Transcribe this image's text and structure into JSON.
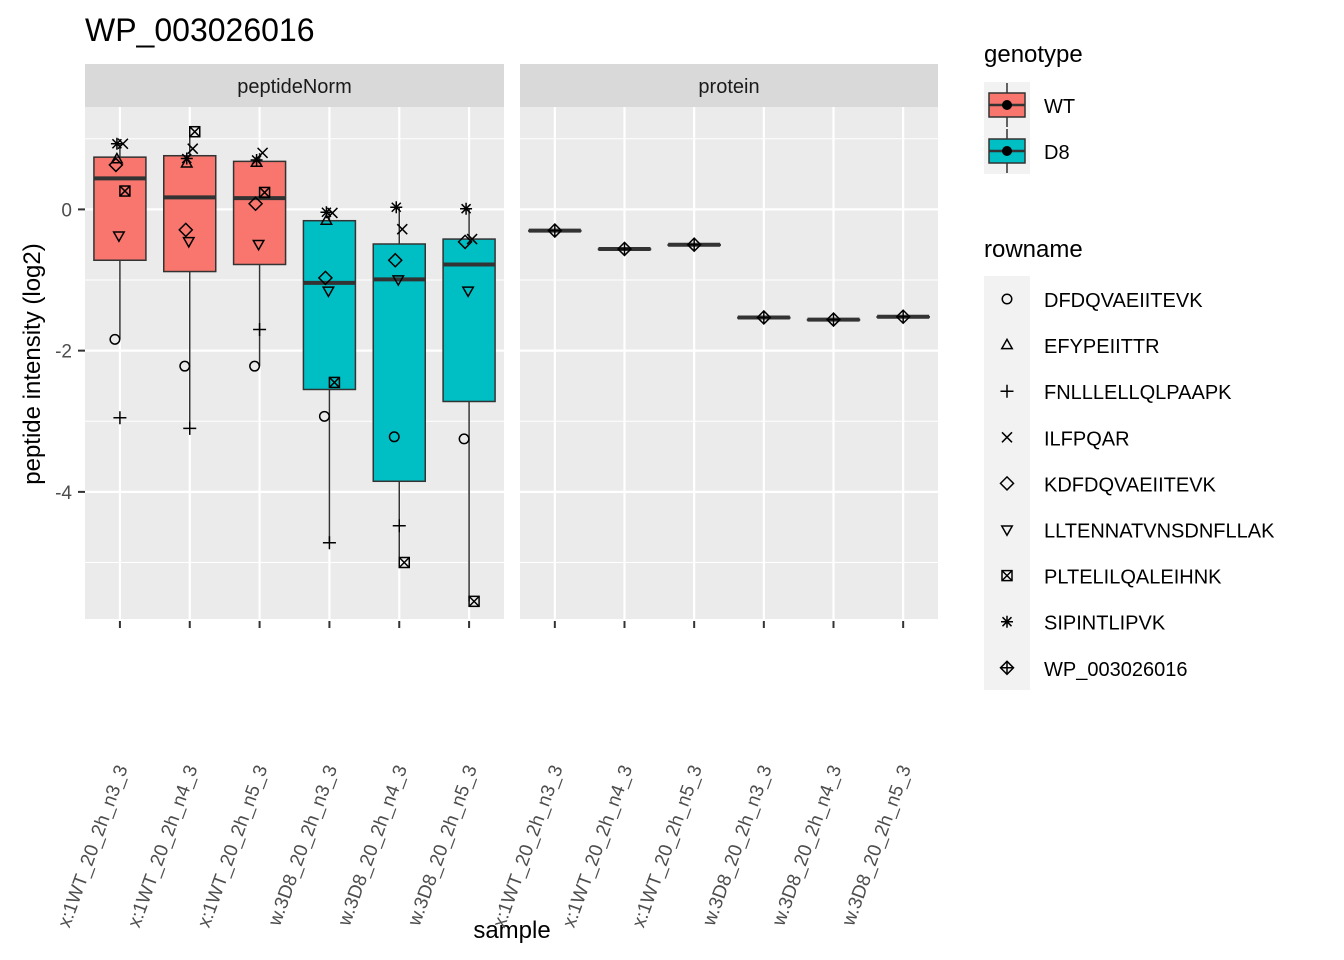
{
  "chart_data": {
    "type": "boxplot",
    "title": "WP_003026016",
    "xlabel": "sample",
    "ylabel": "peptide intensity (log2)",
    "ylim": [
      -5.8,
      1.45
    ],
    "yticks": [
      0,
      -2,
      -4
    ],
    "ytick_labels": [
      "0",
      "-2",
      "-4"
    ],
    "sample_labels": [
      "x:1WT_20_2h_n3_3",
      "x:1WT_20_2h_n4_3",
      "x:1WT_20_2h_n5_3",
      "w.3D8_20_2h_n3_3",
      "w.3D8_20_2h_n4_3",
      "w.3D8_20_2h_n5_3"
    ],
    "sample_genotype": [
      "WT",
      "WT",
      "WT",
      "D8",
      "D8",
      "D8"
    ],
    "grid": true,
    "legend_position": "right",
    "legends": {
      "genotype": {
        "title": "genotype",
        "entries": [
          {
            "label": "WT",
            "color": "#F8766D"
          },
          {
            "label": "D8",
            "color": "#00BFC4"
          }
        ]
      },
      "rowname": {
        "title": "rowname",
        "entries": [
          {
            "label": "DFDQVAEIITEVK",
            "shape": "circle"
          },
          {
            "label": "EFYPEIITTR",
            "shape": "triangle-up"
          },
          {
            "label": "FNLLLELLQLPAAPK",
            "shape": "plus"
          },
          {
            "label": "ILFPQAR",
            "shape": "cross"
          },
          {
            "label": "KDFDQVAEIITEVK",
            "shape": "diamond"
          },
          {
            "label": "LLTENNATVNSDNFLLAK",
            "shape": "triangle-down"
          },
          {
            "label": "PLTELILQALEIHNK",
            "shape": "square-cross"
          },
          {
            "label": "SIPINTLIPVK",
            "shape": "asterisk"
          },
          {
            "label": "WP_003026016",
            "shape": "diamond-plus"
          }
        ]
      }
    },
    "facets": [
      {
        "label": "peptideNorm",
        "boxes": [
          {
            "q1": -0.72,
            "median": 0.44,
            "q3": 0.74,
            "whisker_low": -1.84,
            "whisker_high": 0.93
          },
          {
            "q1": -0.88,
            "median": 0.17,
            "q3": 0.76,
            "whisker_low": -3.1,
            "whisker_high": 1.1
          },
          {
            "q1": -0.78,
            "median": 0.16,
            "q3": 0.68,
            "whisker_low": -2.22,
            "whisker_high": 0.8
          },
          {
            "q1": -2.55,
            "median": -1.04,
            "q3": -0.16,
            "whisker_low": -4.72,
            "whisker_high": -0.04
          },
          {
            "q1": -3.85,
            "median": -0.99,
            "q3": -0.49,
            "whisker_low": -5.0,
            "whisker_high": 0.03
          },
          {
            "q1": -2.72,
            "median": -0.78,
            "q3": -0.42,
            "whisker_low": -5.55,
            "whisker_high": 0.01
          }
        ],
        "points": [
          {
            "sample": 0,
            "rowname": "DFDQVAEIITEVK",
            "y": -1.84
          },
          {
            "sample": 0,
            "rowname": "FNLLLELLQLPAAPK",
            "y": -2.95
          },
          {
            "sample": 0,
            "rowname": "ILFPQAR",
            "y": 0.93
          },
          {
            "sample": 0,
            "rowname": "KDFDQVAEIITEVK",
            "y": 0.63
          },
          {
            "sample": 0,
            "rowname": "LLTENNATVNSDNFLLAK",
            "y": -0.37
          },
          {
            "sample": 0,
            "rowname": "PLTELILQALEIHNK",
            "y": 0.26
          },
          {
            "sample": 0,
            "rowname": "SIPINTLIPVK",
            "y": 0.93
          },
          {
            "sample": 0,
            "rowname": "EFYPEIITTR",
            "y": 0.71
          },
          {
            "sample": 1,
            "rowname": "DFDQVAEIITEVK",
            "y": -2.22
          },
          {
            "sample": 1,
            "rowname": "FNLLLELLQLPAAPK",
            "y": -3.1
          },
          {
            "sample": 1,
            "rowname": "ILFPQAR",
            "y": 0.86
          },
          {
            "sample": 1,
            "rowname": "KDFDQVAEIITEVK",
            "y": -0.29
          },
          {
            "sample": 1,
            "rowname": "LLTENNATVNSDNFLLAK",
            "y": -0.45
          },
          {
            "sample": 1,
            "rowname": "PLTELILQALEIHNK",
            "y": 1.1
          },
          {
            "sample": 1,
            "rowname": "SIPINTLIPVK",
            "y": 0.72
          },
          {
            "sample": 1,
            "rowname": "EFYPEIITTR",
            "y": 0.65
          },
          {
            "sample": 2,
            "rowname": "DFDQVAEIITEVK",
            "y": -2.22
          },
          {
            "sample": 2,
            "rowname": "FNLLLELLQLPAAPK",
            "y": -1.7
          },
          {
            "sample": 2,
            "rowname": "ILFPQAR",
            "y": 0.8
          },
          {
            "sample": 2,
            "rowname": "KDFDQVAEIITEVK",
            "y": 0.08
          },
          {
            "sample": 2,
            "rowname": "LLTENNATVNSDNFLLAK",
            "y": -0.49
          },
          {
            "sample": 2,
            "rowname": "PLTELILQALEIHNK",
            "y": 0.24
          },
          {
            "sample": 2,
            "rowname": "SIPINTLIPVK",
            "y": 0.7
          },
          {
            "sample": 2,
            "rowname": "EFYPEIITTR",
            "y": 0.66
          },
          {
            "sample": 3,
            "rowname": "DFDQVAEIITEVK",
            "y": -2.93
          },
          {
            "sample": 3,
            "rowname": "FNLLLELLQLPAAPK",
            "y": -4.72
          },
          {
            "sample": 3,
            "rowname": "ILFPQAR",
            "y": -0.05
          },
          {
            "sample": 3,
            "rowname": "KDFDQVAEIITEVK",
            "y": -0.97
          },
          {
            "sample": 3,
            "rowname": "LLTENNATVNSDNFLLAK",
            "y": -1.15
          },
          {
            "sample": 3,
            "rowname": "PLTELILQALEIHNK",
            "y": -2.45
          },
          {
            "sample": 3,
            "rowname": "SIPINTLIPVK",
            "y": -0.04
          },
          {
            "sample": 3,
            "rowname": "EFYPEIITTR",
            "y": -0.16
          },
          {
            "sample": 4,
            "rowname": "DFDQVAEIITEVK",
            "y": -3.22
          },
          {
            "sample": 4,
            "rowname": "FNLLLELLQLPAAPK",
            "y": -4.48
          },
          {
            "sample": 4,
            "rowname": "ILFPQAR",
            "y": -0.28
          },
          {
            "sample": 4,
            "rowname": "KDFDQVAEIITEVK",
            "y": -0.72
          },
          {
            "sample": 4,
            "rowname": "LLTENNATVNSDNFLLAK",
            "y": -0.99
          },
          {
            "sample": 4,
            "rowname": "PLTELILQALEIHNK",
            "y": -5.0
          },
          {
            "sample": 4,
            "rowname": "SIPINTLIPVK",
            "y": 0.03
          },
          {
            "sample": 5,
            "rowname": "DFDQVAEIITEVK",
            "y": -3.25
          },
          {
            "sample": 5,
            "rowname": "ILFPQAR",
            "y": -0.42
          },
          {
            "sample": 5,
            "rowname": "KDFDQVAEIITEVK",
            "y": -0.46
          },
          {
            "sample": 5,
            "rowname": "LLTENNATVNSDNFLLAK",
            "y": -1.15
          },
          {
            "sample": 5,
            "rowname": "PLTELILQALEIHNK",
            "y": -5.55
          },
          {
            "sample": 5,
            "rowname": "SIPINTLIPVK",
            "y": 0.01
          }
        ]
      },
      {
        "label": "protein",
        "boxes": [
          {
            "q1": -0.3,
            "median": -0.3,
            "q3": -0.3,
            "whisker_low": -0.3,
            "whisker_high": -0.3
          },
          {
            "q1": -0.56,
            "median": -0.56,
            "q3": -0.56,
            "whisker_low": -0.56,
            "whisker_high": -0.56
          },
          {
            "q1": -0.5,
            "median": -0.5,
            "q3": -0.5,
            "whisker_low": -0.5,
            "whisker_high": -0.5
          },
          {
            "q1": -1.53,
            "median": -1.53,
            "q3": -1.53,
            "whisker_low": -1.53,
            "whisker_high": -1.53
          },
          {
            "q1": -1.56,
            "median": -1.56,
            "q3": -1.56,
            "whisker_low": -1.56,
            "whisker_high": -1.56
          },
          {
            "q1": -1.52,
            "median": -1.52,
            "q3": -1.52,
            "whisker_low": -1.52,
            "whisker_high": -1.52
          }
        ],
        "points": [
          {
            "sample": 0,
            "rowname": "WP_003026016",
            "y": -0.3
          },
          {
            "sample": 1,
            "rowname": "WP_003026016",
            "y": -0.56
          },
          {
            "sample": 2,
            "rowname": "WP_003026016",
            "y": -0.5
          },
          {
            "sample": 3,
            "rowname": "WP_003026016",
            "y": -1.53
          },
          {
            "sample": 4,
            "rowname": "WP_003026016",
            "y": -1.56
          },
          {
            "sample": 5,
            "rowname": "WP_003026016",
            "y": -1.52
          }
        ]
      }
    ]
  }
}
